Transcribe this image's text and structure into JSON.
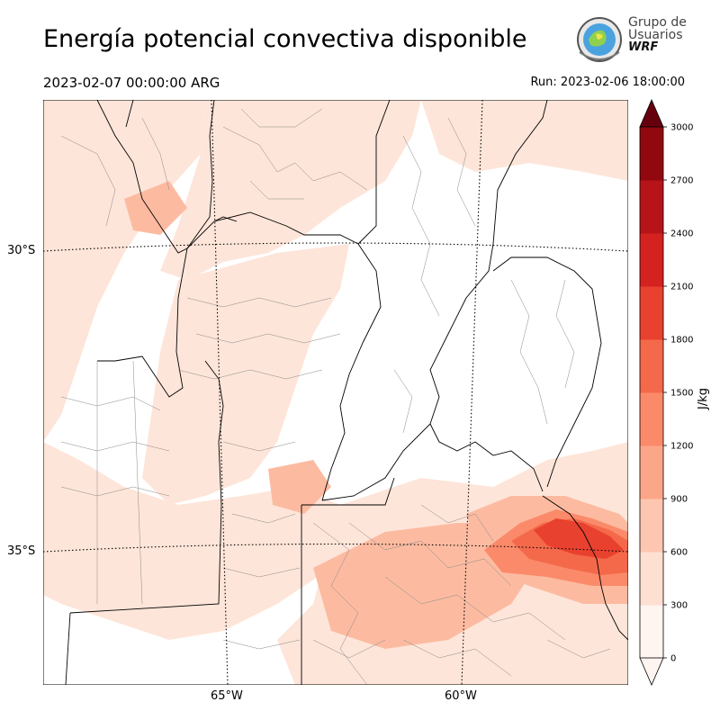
{
  "header": {
    "title": "Energía potencial convectiva disponible",
    "valid_time": "2023-02-07 00:00:00 ARG",
    "run_time": "Run: 2023-02-06 18:00:00"
  },
  "logo": {
    "line1": "Grupo de",
    "line2": "Usuarios",
    "line3": "WRF"
  },
  "axes": {
    "lat_labels": [
      "30°S",
      "35°S"
    ],
    "lon_labels": [
      "65°W",
      "60°W"
    ]
  },
  "colorbar": {
    "unit": "J/kg",
    "ticks": [
      "0",
      "300",
      "600",
      "900",
      "1200",
      "1500",
      "1800",
      "2100",
      "2400",
      "2700",
      "3000"
    ],
    "colors": [
      "#fff5f0",
      "#fee0d2",
      "#fdc6b0",
      "#fca689",
      "#fb8a6a",
      "#f4694a",
      "#e9412f",
      "#d42220",
      "#b71419",
      "#91090e",
      "#67000d"
    ],
    "extend": "both"
  },
  "colors": {
    "field_light": "#fee5d9",
    "field_mid": "#fcbba1",
    "field_strong": "#fb6a4a",
    "field_max": "#ef3b2c",
    "boundary": "#000000",
    "graticule": "#000000"
  }
}
